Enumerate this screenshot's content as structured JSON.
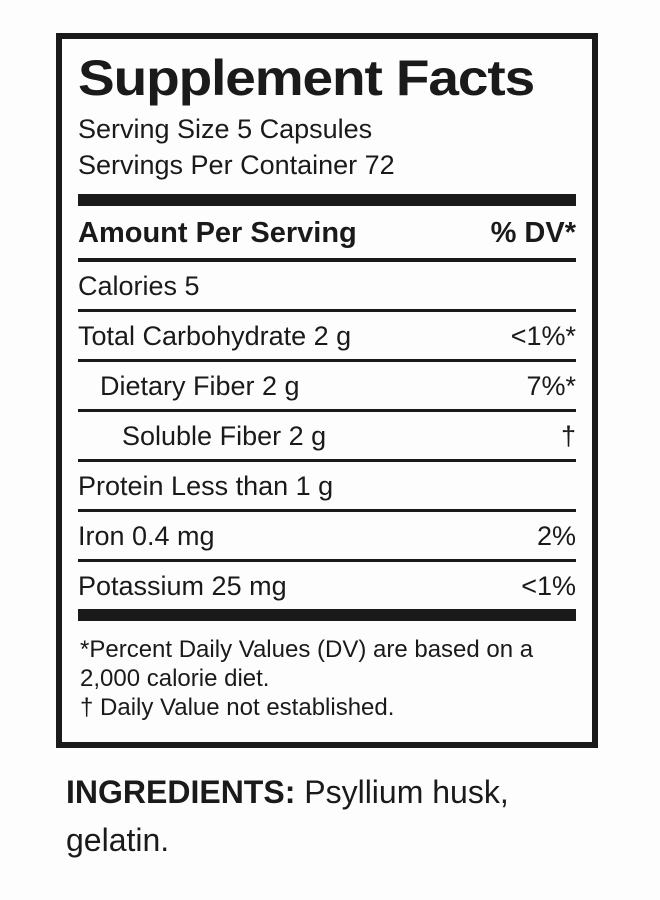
{
  "panel": {
    "title": "Supplement Facts",
    "serving_size": "Serving Size 5 Capsules",
    "servings_per_container": "Servings Per Container 72",
    "table": {
      "header_left": "Amount Per Serving",
      "header_right": "% DV*",
      "rows": [
        {
          "label": "Calories 5",
          "value": "",
          "indent": 0
        },
        {
          "label": "Total Carbohydrate 2 g",
          "value": "<1%*",
          "indent": 0
        },
        {
          "label": "Dietary Fiber 2 g",
          "value": "7%*",
          "indent": 1
        },
        {
          "label": "Soluble Fiber 2 g",
          "value": "†",
          "indent": 2
        },
        {
          "label": "Protein Less than 1 g",
          "value": "",
          "indent": 0
        },
        {
          "label": "Iron 0.4 mg",
          "value": "2%",
          "indent": 0
        },
        {
          "label": "Potassium 25 mg",
          "value": "<1%",
          "indent": 0
        }
      ]
    },
    "footnotes": [
      "*Percent Daily Values (DV) are based on a 2,000 calorie diet.",
      "† Daily Value not established."
    ]
  },
  "ingredients": {
    "label": "INGREDIENTS:",
    "text": " Psyllium husk, gelatin."
  },
  "colors": {
    "ink": "#1a1a1a",
    "background": "#fdfdfd"
  }
}
